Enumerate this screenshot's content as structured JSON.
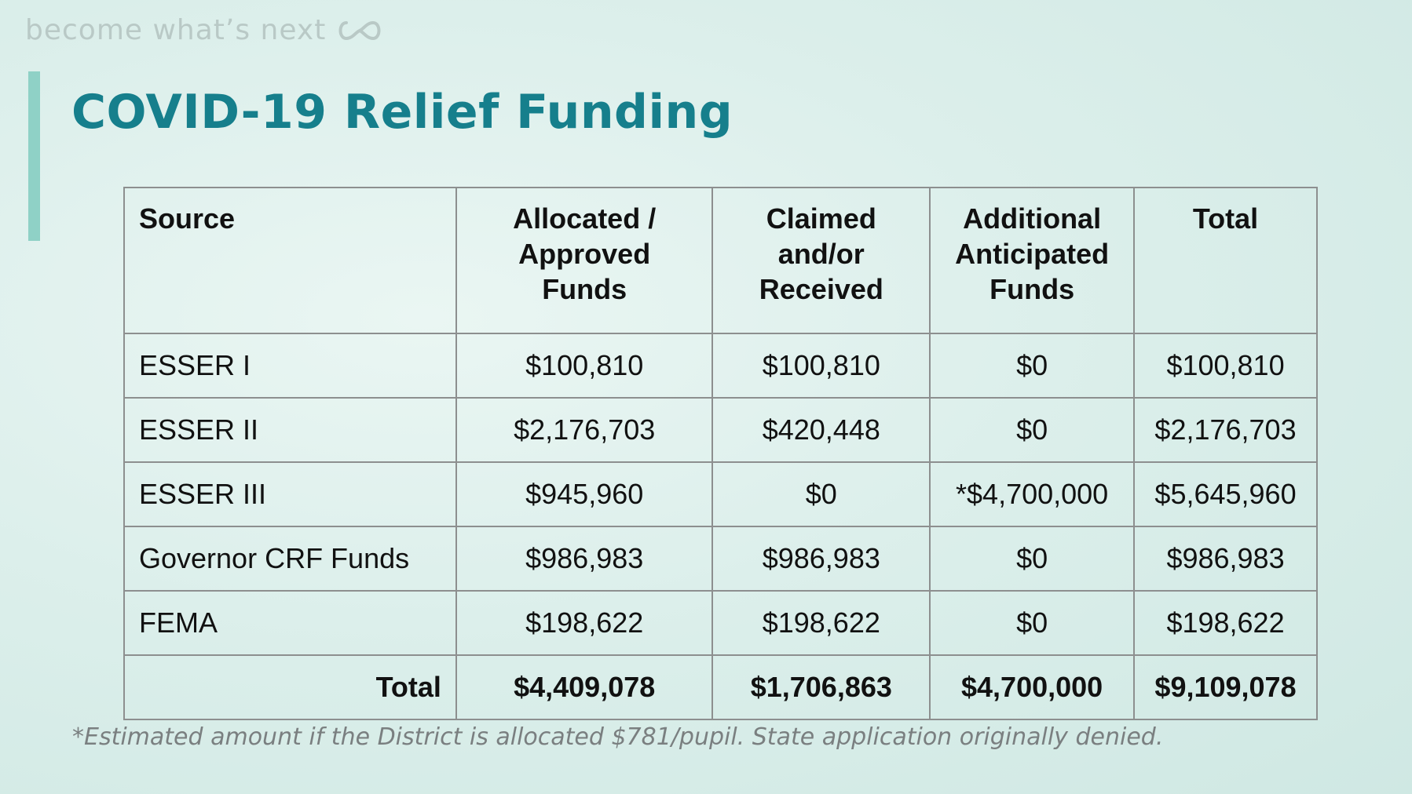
{
  "header": {
    "tagline": "become what’s next",
    "logo_icon": "infinity-loop-icon"
  },
  "slide": {
    "title": "COVID-19 Relief Funding"
  },
  "colors": {
    "title": "#167f8c",
    "accent_bar": "#8fd1c6",
    "tagline": "#b9c9c6",
    "table_border": "#8d8f8f",
    "footnote": "#7a7f80"
  },
  "table": {
    "headers": [
      [
        "Source"
      ],
      [
        "Allocated /",
        "Approved",
        "Funds"
      ],
      [
        "Claimed",
        "and/or",
        "Received"
      ],
      [
        "Additional",
        "Anticipated",
        "Funds"
      ],
      [
        "Total"
      ]
    ],
    "rows": [
      [
        "ESSER I",
        "$100,810",
        "$100,810",
        "$0",
        "$100,810"
      ],
      [
        "ESSER II",
        "$2,176,703",
        "$420,448",
        "$0",
        "$2,176,703"
      ],
      [
        "ESSER III",
        "$945,960",
        "$0",
        "*$4,700,000",
        "$5,645,960"
      ],
      [
        "Governor CRF Funds",
        "$986,983",
        "$986,983",
        "$0",
        "$986,983"
      ],
      [
        "FEMA",
        "$198,622",
        "$198,622",
        "$0",
        "$198,622"
      ]
    ],
    "total_row": [
      "Total",
      "$4,409,078",
      "$1,706,863",
      "$4,700,000",
      "$9,109,078"
    ]
  },
  "footnote": "*Estimated amount if the District is allocated $781/pupil. State application originally denied."
}
